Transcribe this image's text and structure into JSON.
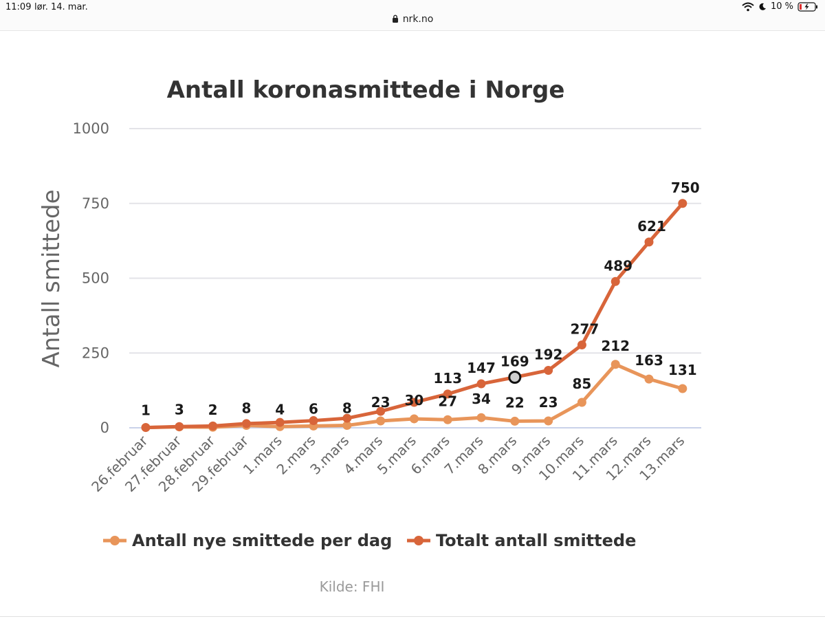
{
  "status": {
    "time": "11:09",
    "date": "lør. 14. mar.",
    "url": "nrk.no",
    "battery": "10 %"
  },
  "colors": {
    "new_cases": "#e8955a",
    "total_cases": "#d8653a",
    "grid": "#e3e3e8",
    "baseline": "#c9d2ea"
  },
  "chart_data": {
    "type": "line",
    "title": "Antall koronasmittede i Norge",
    "xlabel": "",
    "ylabel": "Antall smittede",
    "ylim": [
      0,
      1000
    ],
    "yticks": [
      0,
      250,
      500,
      750,
      1000
    ],
    "categories": [
      "26.februar",
      "27.februar",
      "28.februar",
      "29.februar",
      "1.mars",
      "2.mars",
      "3.mars",
      "4.mars",
      "5.mars",
      "6.mars",
      "7.mars",
      "8.mars",
      "9.mars",
      "10.mars",
      "11.mars",
      "12.mars",
      "13.mars"
    ],
    "series": [
      {
        "name": "Antall nye smittede per dag",
        "values": [
          1,
          3,
          2,
          8,
          4,
          6,
          8,
          23,
          30,
          27,
          34,
          22,
          23,
          85,
          212,
          163,
          131
        ],
        "labels": [
          "1",
          "3",
          "2",
          "8",
          "4",
          "6",
          "8",
          "23",
          "30",
          "27",
          "34",
          "22",
          "23",
          "85",
          "212",
          "163",
          "131"
        ]
      },
      {
        "name": "Totalt antall smittede",
        "values": [
          1,
          4,
          6,
          14,
          18,
          24,
          32,
          55,
          85,
          113,
          147,
          169,
          192,
          277,
          489,
          621,
          750
        ],
        "labels": [
          "",
          "",
          "",
          "",
          "",
          "",
          "",
          "",
          "",
          "113",
          "147",
          "169",
          "192",
          "277",
          "489",
          "621",
          "750"
        ]
      }
    ],
    "highlighted_point": {
      "series": 1,
      "category": "8.mars"
    },
    "legend": "bottom",
    "source": "Kilde: FHI"
  }
}
